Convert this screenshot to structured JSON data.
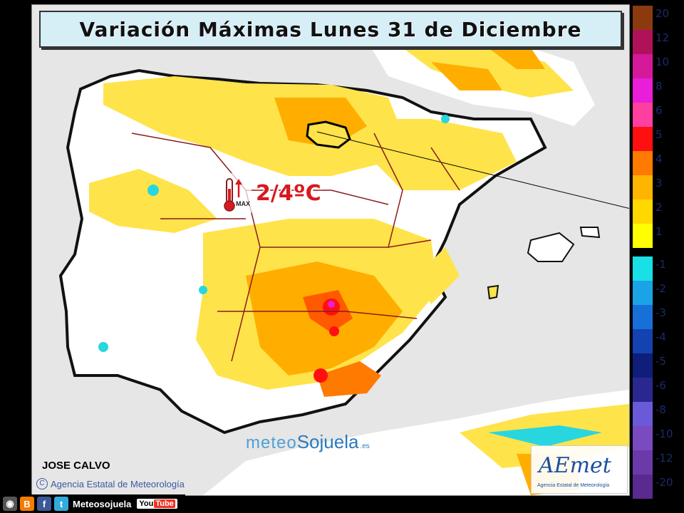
{
  "header": {
    "title": "Variación Máximas Lunes 31 de Diciembre"
  },
  "annotation": {
    "range": "2/4ºC",
    "icon_label": "MAX",
    "icon": "thermometer-up-icon"
  },
  "credits": {
    "author": "JOSE CALVO",
    "agency": "Agencia Estatal de Meteorología",
    "copyright_symbol": "C",
    "brand_part1": "meteo",
    "brand_part2": "Sojuela",
    "brand_suffix": ".es"
  },
  "aemet_logo": {
    "text": "AEmet",
    "subtitle": "Agencia Estatal de Meteorología"
  },
  "legend": {
    "positive": [
      {
        "label": "20",
        "color": "#8b3a0f"
      },
      {
        "label": "12",
        "color": "#b0125a"
      },
      {
        "label": "10",
        "color": "#d6189a"
      },
      {
        "label": "8",
        "color": "#e81ed8"
      },
      {
        "label": "6",
        "color": "#ff3fa0"
      },
      {
        "label": "5",
        "color": "#ff1010"
      },
      {
        "label": "4",
        "color": "#ff7a00"
      },
      {
        "label": "3",
        "color": "#ffb400"
      },
      {
        "label": "2",
        "color": "#ffd800"
      },
      {
        "label": "1",
        "color": "#ffff00"
      }
    ],
    "negative": [
      {
        "label": "-1",
        "color": "#19e0e6"
      },
      {
        "label": "-2",
        "color": "#1aa3e6"
      },
      {
        "label": "-3",
        "color": "#1670d8"
      },
      {
        "label": "-4",
        "color": "#1442b0"
      },
      {
        "label": "-5",
        "color": "#0e1e7a"
      },
      {
        "label": "-6",
        "color": "#2a2890"
      },
      {
        "label": "-8",
        "color": "#6a5ad8"
      },
      {
        "label": "-10",
        "color": "#7a4ac0"
      },
      {
        "label": "-12",
        "color": "#6a3aa8"
      },
      {
        "label": "-20",
        "color": "#5a2a90"
      }
    ]
  },
  "social": {
    "name": "Meteosojuela",
    "youtube_you": "You",
    "youtube_tube": "Tube"
  }
}
